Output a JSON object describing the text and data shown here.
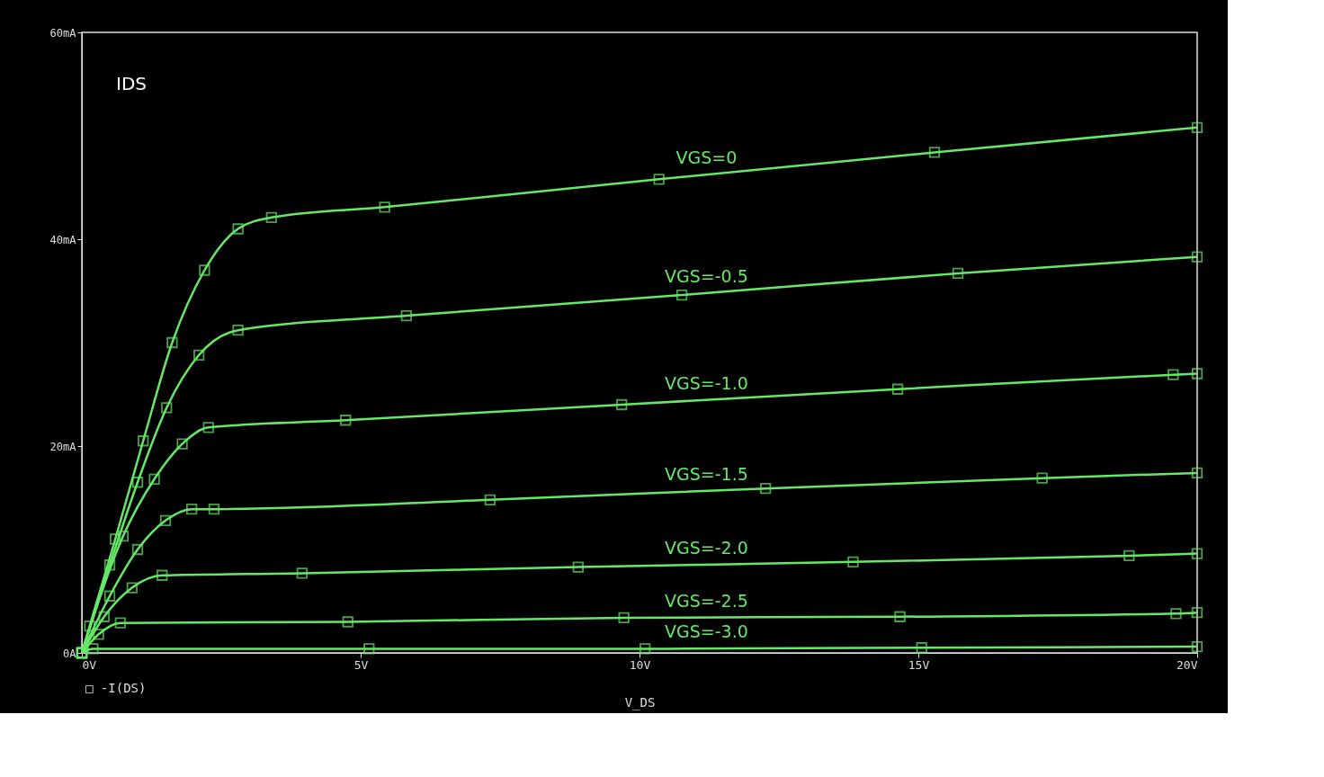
{
  "chart_data": {
    "type": "line",
    "xlabel": "V_DS",
    "annotations": [
      "IDS",
      "□ -I(DS)"
    ],
    "xlim": [
      0,
      20
    ],
    "xticks": [
      {
        "value": 0,
        "label": "0V"
      },
      {
        "value": 5,
        "label": "5V"
      },
      {
        "value": 10,
        "label": "10V"
      },
      {
        "value": 15,
        "label": "15V"
      },
      {
        "value": 20,
        "label": "20V"
      }
    ],
    "ylim": [
      0,
      60
    ],
    "yticks": [
      {
        "value": 0,
        "label": "0A"
      },
      {
        "value": 20,
        "label": "20mA"
      },
      {
        "value": 40,
        "label": "40mA"
      },
      {
        "value": 60,
        "label": "60mA"
      }
    ],
    "grid": false,
    "legend": false,
    "marker": "square",
    "line_style": "solid",
    "series": [
      {
        "name": "VGS=0",
        "color": "#66e866",
        "x": [
          0,
          0.14,
          0.6,
          1.1,
          1.62,
          2.2,
          2.8,
          3.4,
          5.43,
          10.35,
          15.29,
          20
        ],
        "values": [
          0,
          2.6,
          11,
          20.5,
          30,
          37,
          41,
          42.1,
          43.1,
          45.8,
          48.4,
          50.8
        ]
      },
      {
        "name": "VGS=-0.5",
        "color": "#66e866",
        "x": [
          0,
          0.5,
          1.0,
          1.52,
          2.1,
          2.8,
          5.82,
          10.76,
          15.71,
          20
        ],
        "values": [
          0,
          8.5,
          16.5,
          23.7,
          28.8,
          31.2,
          32.6,
          34.6,
          36.7,
          38.3
        ]
      },
      {
        "name": "VGS=-1.0",
        "color": "#66e866",
        "x": [
          0,
          0.74,
          1.3,
          1.8,
          2.27,
          4.73,
          9.68,
          14.63,
          19.57,
          20
        ],
        "values": [
          0,
          11.3,
          16.8,
          20.2,
          21.8,
          22.5,
          24.0,
          25.5,
          26.9,
          27.0
        ]
      },
      {
        "name": "VGS=-1.5",
        "color": "#66e866",
        "x": [
          0,
          0.5,
          1.0,
          1.5,
          1.97,
          2.37,
          7.32,
          12.26,
          17.22,
          20
        ],
        "values": [
          0,
          5.5,
          10,
          12.8,
          13.9,
          13.9,
          14.8,
          15.9,
          16.9,
          17.4
        ]
      },
      {
        "name": "VGS=-2.0",
        "color": "#66e866",
        "x": [
          0,
          0.4,
          0.9,
          1.44,
          3.95,
          8.9,
          13.83,
          18.78,
          20
        ],
        "values": [
          0,
          3.5,
          6.3,
          7.5,
          7.7,
          8.3,
          8.8,
          9.4,
          9.6
        ]
      },
      {
        "name": "VGS=-2.5",
        "color": "#66e866",
        "x": [
          0,
          0.3,
          0.69,
          4.77,
          9.72,
          14.67,
          19.62,
          20
        ],
        "values": [
          0,
          1.8,
          2.9,
          3.0,
          3.4,
          3.5,
          3.8,
          3.9
        ]
      },
      {
        "name": "VGS=-3.0",
        "color": "#66e866",
        "x": [
          0,
          0.2,
          5.15,
          10.1,
          15.06,
          20
        ],
        "values": [
          0,
          0.4,
          0.4,
          0.4,
          0.5,
          0.6
        ]
      }
    ]
  }
}
